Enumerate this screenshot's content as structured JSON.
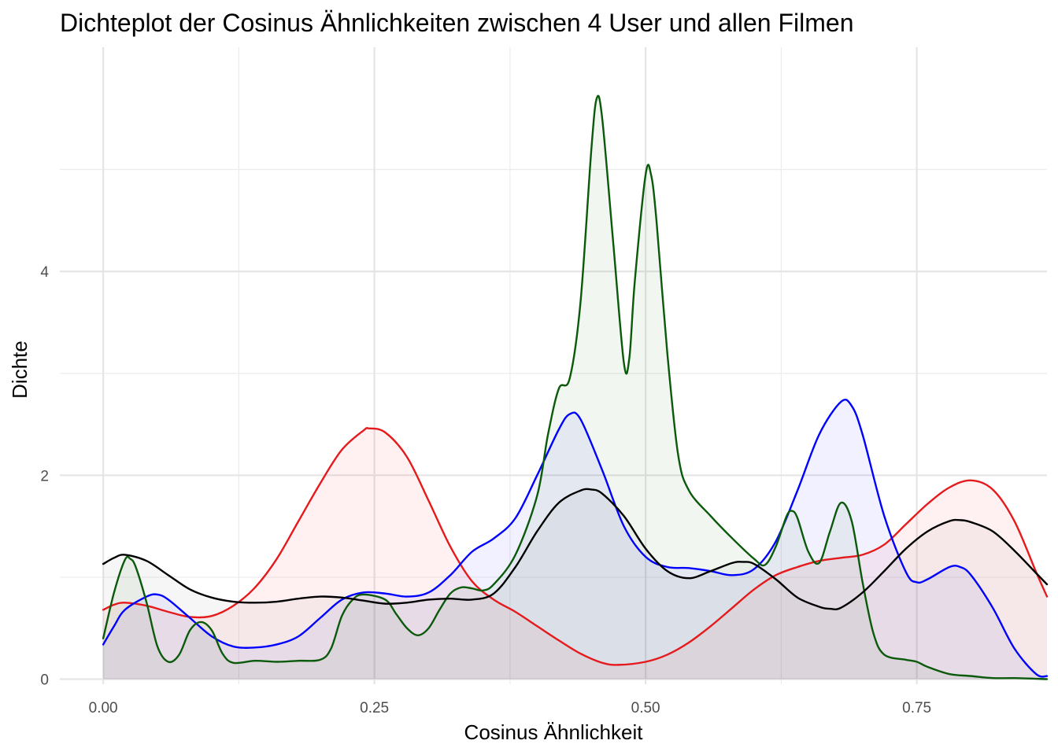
{
  "chart_data": {
    "type": "area",
    "title": "Dichteplot der Cosinus Ähnlichkeiten zwischen 4 User und allen Filmen",
    "xlabel": "Cosinus Ähnlichkeit",
    "ylabel": "Dichte",
    "xlim": [
      -0.04,
      0.87
    ],
    "ylim": [
      -0.05,
      6.2
    ],
    "x_ticks": [
      0.0,
      0.25,
      0.5,
      0.75
    ],
    "x_tick_labels": [
      "0.00",
      "0.25",
      "0.50",
      "0.75"
    ],
    "x_minor_ticks": [
      0.125,
      0.375,
      0.625
    ],
    "y_ticks": [
      0,
      2,
      4
    ],
    "y_tick_labels": [
      "0",
      "2",
      "4"
    ],
    "y_minor_ticks": [
      1,
      3,
      5
    ],
    "grid": true,
    "legend": "none",
    "series": [
      {
        "color": "#e41a1c",
        "fill": "#ff0000",
        "points": [
          [
            0.0,
            0.68
          ],
          [
            0.01,
            0.73
          ],
          [
            0.02,
            0.75
          ],
          [
            0.04,
            0.72
          ],
          [
            0.06,
            0.66
          ],
          [
            0.08,
            0.61
          ],
          [
            0.1,
            0.62
          ],
          [
            0.12,
            0.72
          ],
          [
            0.14,
            0.9
          ],
          [
            0.16,
            1.18
          ],
          [
            0.18,
            1.55
          ],
          [
            0.2,
            1.92
          ],
          [
            0.22,
            2.25
          ],
          [
            0.24,
            2.44
          ],
          [
            0.245,
            2.46
          ],
          [
            0.26,
            2.42
          ],
          [
            0.28,
            2.18
          ],
          [
            0.3,
            1.75
          ],
          [
            0.32,
            1.3
          ],
          [
            0.34,
            0.96
          ],
          [
            0.36,
            0.78
          ],
          [
            0.38,
            0.66
          ],
          [
            0.4,
            0.52
          ],
          [
            0.42,
            0.38
          ],
          [
            0.44,
            0.25
          ],
          [
            0.46,
            0.16
          ],
          [
            0.475,
            0.14
          ],
          [
            0.5,
            0.17
          ],
          [
            0.52,
            0.24
          ],
          [
            0.54,
            0.36
          ],
          [
            0.56,
            0.52
          ],
          [
            0.58,
            0.7
          ],
          [
            0.6,
            0.88
          ],
          [
            0.62,
            1.02
          ],
          [
            0.64,
            1.1
          ],
          [
            0.66,
            1.16
          ],
          [
            0.68,
            1.19
          ],
          [
            0.7,
            1.22
          ],
          [
            0.72,
            1.32
          ],
          [
            0.74,
            1.52
          ],
          [
            0.76,
            1.72
          ],
          [
            0.78,
            1.88
          ],
          [
            0.8,
            1.95
          ],
          [
            0.82,
            1.86
          ],
          [
            0.84,
            1.55
          ],
          [
            0.86,
            1.05
          ],
          [
            0.87,
            0.81
          ]
        ]
      },
      {
        "color": "#0000ff",
        "fill": "#0000ff",
        "points": [
          [
            0.0,
            0.34
          ],
          [
            0.01,
            0.52
          ],
          [
            0.02,
            0.68
          ],
          [
            0.04,
            0.81
          ],
          [
            0.05,
            0.83
          ],
          [
            0.06,
            0.78
          ],
          [
            0.08,
            0.6
          ],
          [
            0.1,
            0.42
          ],
          [
            0.12,
            0.32
          ],
          [
            0.14,
            0.31
          ],
          [
            0.16,
            0.34
          ],
          [
            0.18,
            0.42
          ],
          [
            0.2,
            0.6
          ],
          [
            0.22,
            0.78
          ],
          [
            0.24,
            0.85
          ],
          [
            0.26,
            0.84
          ],
          [
            0.28,
            0.81
          ],
          [
            0.3,
            0.85
          ],
          [
            0.32,
            1.02
          ],
          [
            0.34,
            1.25
          ],
          [
            0.36,
            1.38
          ],
          [
            0.38,
            1.58
          ],
          [
            0.4,
            2.0
          ],
          [
            0.42,
            2.45
          ],
          [
            0.43,
            2.6
          ],
          [
            0.44,
            2.55
          ],
          [
            0.46,
            2.05
          ],
          [
            0.48,
            1.5
          ],
          [
            0.5,
            1.2
          ],
          [
            0.52,
            1.1
          ],
          [
            0.54,
            1.09
          ],
          [
            0.56,
            1.06
          ],
          [
            0.58,
            1.02
          ],
          [
            0.6,
            1.08
          ],
          [
            0.62,
            1.35
          ],
          [
            0.64,
            1.85
          ],
          [
            0.66,
            2.4
          ],
          [
            0.68,
            2.72
          ],
          [
            0.69,
            2.68
          ],
          [
            0.7,
            2.4
          ],
          [
            0.72,
            1.6
          ],
          [
            0.74,
            1.05
          ],
          [
            0.75,
            0.95
          ],
          [
            0.76,
            0.98
          ],
          [
            0.78,
            1.1
          ],
          [
            0.79,
            1.1
          ],
          [
            0.8,
            1.02
          ],
          [
            0.82,
            0.7
          ],
          [
            0.84,
            0.3
          ],
          [
            0.86,
            0.05
          ],
          [
            0.87,
            0.03
          ]
        ]
      },
      {
        "color": "#0b5a0b",
        "fill": "#006400",
        "points": [
          [
            0.0,
            0.4
          ],
          [
            0.01,
            0.85
          ],
          [
            0.02,
            1.17
          ],
          [
            0.025,
            1.18
          ],
          [
            0.03,
            1.1
          ],
          [
            0.04,
            0.75
          ],
          [
            0.05,
            0.32
          ],
          [
            0.06,
            0.17
          ],
          [
            0.07,
            0.24
          ],
          [
            0.08,
            0.48
          ],
          [
            0.09,
            0.56
          ],
          [
            0.1,
            0.48
          ],
          [
            0.11,
            0.25
          ],
          [
            0.12,
            0.16
          ],
          [
            0.14,
            0.18
          ],
          [
            0.16,
            0.17
          ],
          [
            0.18,
            0.18
          ],
          [
            0.2,
            0.19
          ],
          [
            0.21,
            0.3
          ],
          [
            0.22,
            0.62
          ],
          [
            0.23,
            0.78
          ],
          [
            0.24,
            0.83
          ],
          [
            0.26,
            0.78
          ],
          [
            0.27,
            0.64
          ],
          [
            0.28,
            0.5
          ],
          [
            0.29,
            0.43
          ],
          [
            0.3,
            0.5
          ],
          [
            0.31,
            0.68
          ],
          [
            0.32,
            0.84
          ],
          [
            0.33,
            0.9
          ],
          [
            0.34,
            0.89
          ],
          [
            0.35,
            0.87
          ],
          [
            0.36,
            0.93
          ],
          [
            0.38,
            1.22
          ],
          [
            0.4,
            1.8
          ],
          [
            0.41,
            2.4
          ],
          [
            0.42,
            2.85
          ],
          [
            0.43,
            2.95
          ],
          [
            0.44,
            3.7
          ],
          [
            0.45,
            5.2
          ],
          [
            0.455,
            5.7
          ],
          [
            0.46,
            5.5
          ],
          [
            0.47,
            4.3
          ],
          [
            0.48,
            3.1
          ],
          [
            0.485,
            3.15
          ],
          [
            0.49,
            3.9
          ],
          [
            0.5,
            4.95
          ],
          [
            0.505,
            4.95
          ],
          [
            0.51,
            4.5
          ],
          [
            0.52,
            3.2
          ],
          [
            0.53,
            2.2
          ],
          [
            0.54,
            1.85
          ],
          [
            0.56,
            1.6
          ],
          [
            0.58,
            1.38
          ],
          [
            0.6,
            1.18
          ],
          [
            0.61,
            1.12
          ],
          [
            0.62,
            1.3
          ],
          [
            0.63,
            1.6
          ],
          [
            0.635,
            1.65
          ],
          [
            0.64,
            1.58
          ],
          [
            0.65,
            1.25
          ],
          [
            0.66,
            1.14
          ],
          [
            0.67,
            1.45
          ],
          [
            0.68,
            1.73
          ],
          [
            0.69,
            1.55
          ],
          [
            0.7,
            0.95
          ],
          [
            0.71,
            0.45
          ],
          [
            0.72,
            0.24
          ],
          [
            0.74,
            0.19
          ],
          [
            0.75,
            0.17
          ],
          [
            0.76,
            0.12
          ],
          [
            0.78,
            0.05
          ],
          [
            0.8,
            0.03
          ],
          [
            0.82,
            0.01
          ],
          [
            0.84,
            0.01
          ],
          [
            0.87,
            0.0
          ]
        ]
      },
      {
        "color": "#000000",
        "fill": "#555555",
        "points": [
          [
            0.0,
            1.13
          ],
          [
            0.01,
            1.19
          ],
          [
            0.02,
            1.22
          ],
          [
            0.04,
            1.16
          ],
          [
            0.06,
            1.02
          ],
          [
            0.08,
            0.88
          ],
          [
            0.1,
            0.8
          ],
          [
            0.12,
            0.76
          ],
          [
            0.14,
            0.75
          ],
          [
            0.16,
            0.76
          ],
          [
            0.18,
            0.79
          ],
          [
            0.2,
            0.81
          ],
          [
            0.22,
            0.8
          ],
          [
            0.24,
            0.77
          ],
          [
            0.26,
            0.74
          ],
          [
            0.28,
            0.75
          ],
          [
            0.3,
            0.78
          ],
          [
            0.32,
            0.79
          ],
          [
            0.34,
            0.78
          ],
          [
            0.36,
            0.84
          ],
          [
            0.38,
            1.1
          ],
          [
            0.4,
            1.45
          ],
          [
            0.42,
            1.73
          ],
          [
            0.44,
            1.85
          ],
          [
            0.45,
            1.86
          ],
          [
            0.46,
            1.82
          ],
          [
            0.48,
            1.6
          ],
          [
            0.5,
            1.28
          ],
          [
            0.52,
            1.06
          ],
          [
            0.54,
            0.99
          ],
          [
            0.56,
            1.06
          ],
          [
            0.58,
            1.14
          ],
          [
            0.59,
            1.15
          ],
          [
            0.6,
            1.13
          ],
          [
            0.62,
            0.98
          ],
          [
            0.64,
            0.8
          ],
          [
            0.66,
            0.71
          ],
          [
            0.67,
            0.69
          ],
          [
            0.68,
            0.7
          ],
          [
            0.7,
            0.85
          ],
          [
            0.72,
            1.06
          ],
          [
            0.74,
            1.28
          ],
          [
            0.76,
            1.45
          ],
          [
            0.78,
            1.55
          ],
          [
            0.79,
            1.56
          ],
          [
            0.8,
            1.54
          ],
          [
            0.82,
            1.45
          ],
          [
            0.84,
            1.26
          ],
          [
            0.86,
            1.04
          ],
          [
            0.87,
            0.93
          ]
        ]
      }
    ]
  }
}
